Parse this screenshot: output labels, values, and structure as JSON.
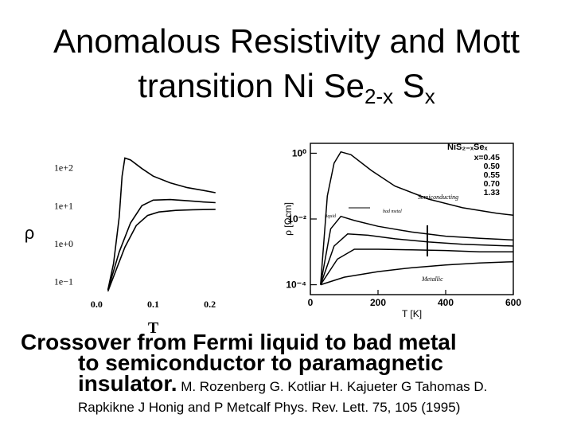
{
  "slide": {
    "title_line1": "Anomalous Resistivity and Mott",
    "title_line2_prefix": "transition Ni Se",
    "title_line2_sub1": "2-x",
    "title_line2_mid": " S",
    "title_line2_sub2": "x",
    "caption_line1": "Crossover from Fermi liquid to bad metal",
    "caption_line2": "to semiconductor to paramagnetic",
    "caption_line3_bold": "insulator.",
    "caption_line3_cite": " M. Rozenberg G. Kotliar H. Kajueter G Tahomas D.",
    "caption_line4": "Rapkikne J Honig and P Metcalf Phys. Rev. Lett. 75, 105 (1995)"
  },
  "chart_data": [
    {
      "type": "line",
      "xlabel": "T",
      "ylabel": "ρ",
      "y_scale": "log",
      "x_ticks": [
        "0.0",
        "0.1",
        "0.2"
      ],
      "x_tick_values": [
        0.0,
        0.1,
        0.2
      ],
      "y_ticks": [
        "1e+2",
        "1e+1",
        "1e+0",
        "1e−1"
      ],
      "y_tick_values": [
        100,
        10,
        1,
        0.1
      ],
      "xlim": [
        -0.03,
        0.23
      ],
      "ylim": [
        0.045,
        400
      ],
      "series": [
        {
          "values": [
            [
              0.02,
              0.06
            ],
            [
              0.03,
              0.3
            ],
            [
              0.04,
              5
            ],
            [
              0.045,
              60
            ],
            [
              0.05,
              180
            ],
            [
              0.06,
              160
            ],
            [
              0.08,
              95
            ],
            [
              0.1,
              60
            ],
            [
              0.13,
              40
            ],
            [
              0.16,
              30
            ],
            [
              0.19,
              25
            ],
            [
              0.21,
              22
            ]
          ]
        },
        {
          "values": [
            [
              0.02,
              0.06
            ],
            [
              0.04,
              0.6
            ],
            [
              0.06,
              3.5
            ],
            [
              0.08,
              10
            ],
            [
              0.1,
              14
            ],
            [
              0.13,
              14.5
            ],
            [
              0.16,
              13.5
            ],
            [
              0.19,
              12.5
            ],
            [
              0.21,
              12
            ]
          ]
        },
        {
          "values": [
            [
              0.02,
              0.055
            ],
            [
              0.05,
              0.8
            ],
            [
              0.07,
              3
            ],
            [
              0.09,
              5.5
            ],
            [
              0.11,
              6.8
            ],
            [
              0.14,
              7.5
            ],
            [
              0.17,
              7.8
            ],
            [
              0.21,
              8
            ]
          ]
        }
      ]
    },
    {
      "type": "line",
      "xlabel": "T [K]",
      "ylabel": "ρ [Ωcm]",
      "y_scale": "log",
      "x_ticks": [
        "0",
        "200",
        "400",
        "600"
      ],
      "x_tick_values": [
        0,
        200,
        400,
        600
      ],
      "y_ticks": [
        "10⁰",
        "10⁻²",
        "10⁻⁴"
      ],
      "y_tick_values": [
        1,
        0.01,
        0.0001
      ],
      "xlim": [
        0,
        600
      ],
      "ylim": [
        5e-05,
        2
      ],
      "legend_title": "NiS₂₋ₓSeₓ",
      "legend_entries": [
        "x=0.45",
        "0.50",
        "0.55",
        "0.70",
        "1.33"
      ],
      "annotations": [
        "Semiconducting",
        "bad metal",
        "Metallic",
        "liquid"
      ],
      "series": [
        {
          "name": "x=0.45",
          "values": [
            [
              30,
              0.0001
            ],
            [
              50,
              0.05
            ],
            [
              70,
              0.5
            ],
            [
              90,
              1.1
            ],
            [
              120,
              0.9
            ],
            [
              180,
              0.3
            ],
            [
              250,
              0.1
            ],
            [
              350,
              0.04
            ],
            [
              450,
              0.022
            ],
            [
              550,
              0.015
            ],
            [
              600,
              0.013
            ]
          ]
        },
        {
          "name": "0.50",
          "values": [
            [
              30,
              0.0001
            ],
            [
              60,
              0.005
            ],
            [
              90,
              0.012
            ],
            [
              130,
              0.009
            ],
            [
              200,
              0.006
            ],
            [
              300,
              0.004
            ],
            [
              400,
              0.003
            ],
            [
              500,
              0.0026
            ],
            [
              600,
              0.0023
            ]
          ]
        },
        {
          "name": "0.55",
          "values": [
            [
              30,
              0.0001
            ],
            [
              70,
              0.0015
            ],
            [
              110,
              0.0035
            ],
            [
              170,
              0.0032
            ],
            [
              250,
              0.0025
            ],
            [
              350,
              0.002
            ],
            [
              450,
              0.0017
            ],
            [
              600,
              0.0015
            ]
          ]
        },
        {
          "name": "0.70",
          "values": [
            [
              30,
              0.0001
            ],
            [
              80,
              0.0006
            ],
            [
              130,
              0.0012
            ],
            [
              200,
              0.0012
            ],
            [
              300,
              0.00115
            ],
            [
              400,
              0.0011
            ],
            [
              500,
              0.001
            ],
            [
              600,
              0.001
            ]
          ]
        },
        {
          "name": "1.33",
          "values": [
            [
              30,
              0.0001
            ],
            [
              100,
              0.00017
            ],
            [
              200,
              0.00025
            ],
            [
              300,
              0.00033
            ],
            [
              400,
              0.0004
            ],
            [
              500,
              0.00046
            ],
            [
              600,
              0.0005
            ]
          ]
        }
      ]
    }
  ]
}
